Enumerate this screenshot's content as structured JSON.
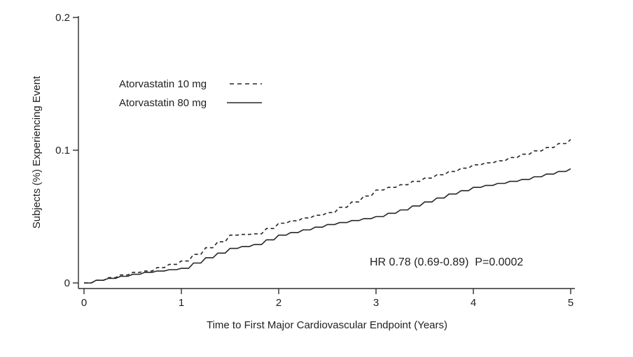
{
  "chart_data": {
    "type": "line",
    "subtype": "kaplan-meier-cumulative-incidence",
    "title": "",
    "xlabel": "Time to First Major Cardiovascular Endpoint (Years)",
    "ylabel": "Subjects (%) Experiencing Event",
    "xlim": [
      0,
      5
    ],
    "ylim": [
      0,
      0.2
    ],
    "grid": false,
    "legend_position": "upper-left-inside",
    "annotation": "HR 0.78 (0.69-0.89)  P=0.0002",
    "line_color": "#262626",
    "x_ticks": [
      0,
      1,
      2,
      3,
      4,
      5
    ],
    "y_ticks": [
      0,
      0.1,
      0.2
    ],
    "x_tick_labels": [
      "0",
      "1",
      "2",
      "3",
      "4",
      "5"
    ],
    "y_tick_labels": [
      "0",
      "0.1",
      "0.2"
    ],
    "x": [
      0,
      0.125,
      0.25,
      0.375,
      0.5,
      0.625,
      0.75,
      0.875,
      1.0,
      1.125,
      1.25,
      1.375,
      1.5,
      1.625,
      1.75,
      1.875,
      2.0,
      2.125,
      2.25,
      2.375,
      2.5,
      2.625,
      2.75,
      2.875,
      3.0,
      3.125,
      3.25,
      3.375,
      3.5,
      3.625,
      3.75,
      3.875,
      4.0,
      4.125,
      4.25,
      4.375,
      4.5,
      4.625,
      4.75,
      4.875,
      5.0
    ],
    "series": [
      {
        "name": "Atorvastatin 10 mg",
        "line_style": "dashed",
        "values": [
          0.0,
          0.002,
          0.004,
          0.006,
          0.008,
          0.009,
          0.0115,
          0.014,
          0.0165,
          0.0215,
          0.0265,
          0.031,
          0.036,
          0.0365,
          0.037,
          0.041,
          0.045,
          0.0468,
          0.049,
          0.051,
          0.053,
          0.057,
          0.061,
          0.0655,
          0.07,
          0.072,
          0.074,
          0.0765,
          0.079,
          0.0815,
          0.084,
          0.0865,
          0.089,
          0.0905,
          0.092,
          0.0945,
          0.097,
          0.0995,
          0.102,
          0.105,
          0.108
        ]
      },
      {
        "name": "Atorvastatin 80 mg",
        "line_style": "solid",
        "values": [
          0.0,
          0.002,
          0.0035,
          0.005,
          0.0065,
          0.008,
          0.009,
          0.01,
          0.011,
          0.015,
          0.019,
          0.0225,
          0.026,
          0.0275,
          0.029,
          0.0325,
          0.036,
          0.038,
          0.04,
          0.042,
          0.044,
          0.0455,
          0.047,
          0.0485,
          0.05,
          0.0525,
          0.055,
          0.058,
          0.061,
          0.064,
          0.067,
          0.0695,
          0.072,
          0.0735,
          0.075,
          0.0765,
          0.078,
          0.08,
          0.082,
          0.084,
          0.086
        ]
      }
    ]
  }
}
